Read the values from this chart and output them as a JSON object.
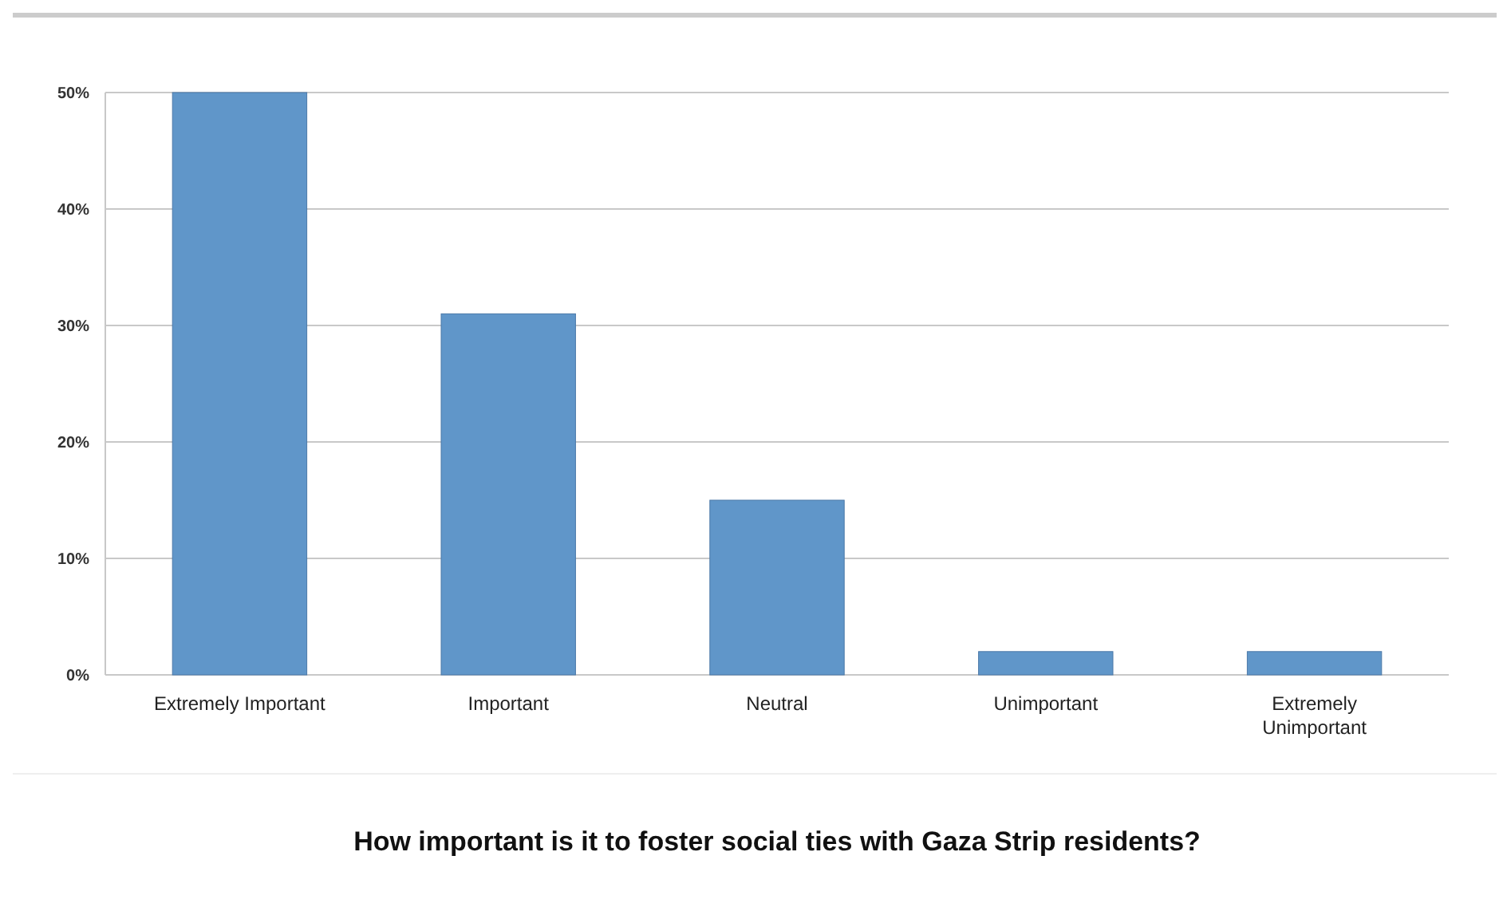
{
  "chart_data": {
    "type": "bar",
    "title": "How important is it to foster social ties with Gaza Strip residents?",
    "categories": [
      "Extremely Important",
      "Important",
      "Neutral",
      "Unimportant",
      "Extremely Unimportant"
    ],
    "values": [
      50,
      31,
      15,
      2,
      2
    ],
    "color": "#6096c9",
    "ylim": [
      0,
      50
    ],
    "yticks": [
      {
        "value": 0,
        "label": "0%"
      },
      {
        "value": 10,
        "label": "10%"
      },
      {
        "value": 20,
        "label": "20%"
      },
      {
        "value": 30,
        "label": "30%"
      },
      {
        "value": 40,
        "label": "40%"
      },
      {
        "value": 50,
        "label": "50%"
      }
    ],
    "grid": true
  }
}
